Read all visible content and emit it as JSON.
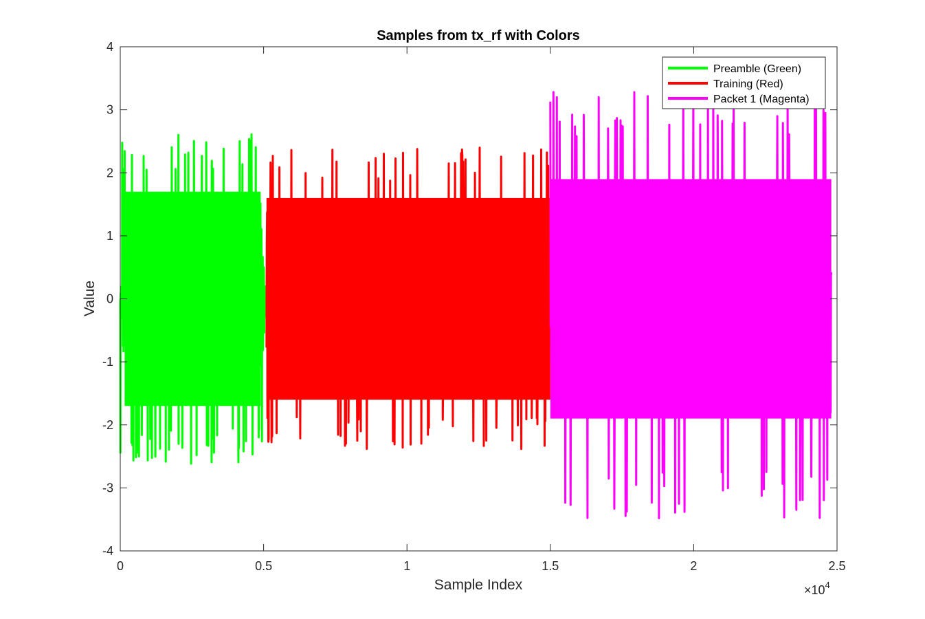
{
  "chart_data": {
    "type": "line",
    "title": "Samples from tx_rf with Colors",
    "xlabel": "Sample Index",
    "ylabel": "Value",
    "xlim": [
      0,
      25000
    ],
    "ylim": [
      -4,
      4
    ],
    "x_ticks": [
      0,
      5000,
      10000,
      15000,
      20000,
      25000
    ],
    "x_tick_labels": [
      "0",
      "0.5",
      "1",
      "1.5",
      "2",
      "2.5"
    ],
    "x_exponent_label": "×10",
    "x_exponent_power": "4",
    "y_ticks": [
      4,
      3,
      2,
      1,
      0,
      -1,
      -2,
      -3,
      -4
    ],
    "y_tick_labels": [
      "4",
      "3",
      "2",
      "1",
      "0",
      "-1",
      "-2",
      "-3",
      "-4"
    ],
    "grid": false,
    "legend_position": "top-right",
    "series": [
      {
        "name": "Preamble (Green)",
        "color": "#00ff00",
        "x_range": [
          0,
          5100
        ],
        "envelope": {
          "typical": 1.7,
          "max": 2.62,
          "min": -2.63
        }
      },
      {
        "name": "Training (Red)",
        "color": "#ff0000",
        "x_range": [
          5100,
          15000
        ],
        "envelope": {
          "typical": 1.6,
          "max": 2.4,
          "min": -2.4
        }
      },
      {
        "name": "Packet 1 (Magenta)",
        "color": "#ff00ff",
        "x_range": [
          15000,
          24800
        ],
        "envelope": {
          "typical": 1.9,
          "max": 3.3,
          "min": -3.5
        }
      }
    ]
  }
}
